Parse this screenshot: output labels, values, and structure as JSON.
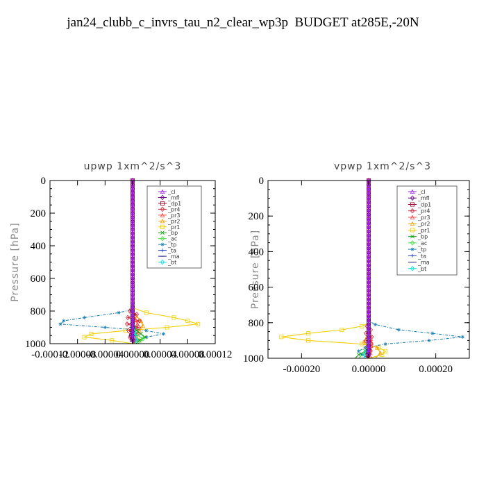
{
  "title": "jan24_clubb_c_invrs_tau_n2_clear_wp3p  BUDGET at285E,-20N",
  "legend_entries": [
    {
      "label": "_cl",
      "color": "#a020f0",
      "marker": "triangle"
    },
    {
      "label": "_mfl",
      "color": "#600080",
      "marker": "diamond"
    },
    {
      "label": "_dp1",
      "color": "#a0002a",
      "marker": "square"
    },
    {
      "label": "_pr4",
      "color": "#d0203a",
      "marker": "diamond"
    },
    {
      "label": "_pr3",
      "color": "#ff4040",
      "marker": "triangle"
    },
    {
      "label": "_pr2",
      "color": "#f0a000",
      "marker": "triangle"
    },
    {
      "label": "_pr1",
      "color": "#f0d000",
      "marker": "square"
    },
    {
      "label": "_bp",
      "color": "#10a010",
      "marker": "cross"
    },
    {
      "label": "_ac",
      "color": "#40e040",
      "marker": "diamond"
    },
    {
      "label": "_tp",
      "color": "#1a7fb0",
      "marker": "star"
    },
    {
      "label": "_ta",
      "color": "#2040c0",
      "marker": "plus"
    },
    {
      "label": "_ma",
      "color": "#202080",
      "marker": "dash"
    },
    {
      "label": "_bt",
      "color": "#00e0e0",
      "marker": "diamond"
    }
  ],
  "chart_data": [
    {
      "type": "line",
      "title": "upwp   1xm^2/s^3",
      "xlabel": "",
      "ylabel": "Pressure [hPa]",
      "xlim": [
        -0.00012,
        0.00012
      ],
      "ylim": [
        1000,
        0
      ],
      "x_ticks": [
        -0.00012,
        -8e-05,
        -4e-05,
        0.0,
        4e-05,
        8e-05,
        0.00012
      ],
      "x_tick_labels": [
        "-0.00012",
        "-0.00008",
        "-0.00004",
        "0.00000",
        "0.00004",
        "0.00008",
        "0.00012"
      ],
      "y_ticks": [
        0,
        200,
        400,
        600,
        800,
        1000
      ],
      "y_tick_labels": [
        "0",
        "200",
        "400",
        "600",
        "800",
        "1000"
      ],
      "legend_position": "top-right",
      "series": [
        {
          "name": "_pr1",
          "y": [
            0,
            780,
            810,
            840,
            860,
            880,
            900,
            920,
            940,
            960,
            980,
            1000
          ],
          "x": [
            0,
            0,
            2e-05,
            6e-05,
            8e-05,
            9.5e-05,
            5e-05,
            -1e-05,
            -6e-05,
            -7e-05,
            -3e-05,
            0
          ]
        },
        {
          "name": "_tp",
          "y": [
            0,
            790,
            810,
            840,
            860,
            880,
            900,
            920,
            940,
            960,
            980,
            1000
          ],
          "x": [
            0,
            0,
            -2e-05,
            -7e-05,
            -0.0001,
            -0.000105,
            -4e-05,
            2e-05,
            4.5e-05,
            2e-05,
            5e-06,
            0
          ]
        },
        {
          "name": "_pr2",
          "y": [
            0,
            800,
            830,
            860,
            890,
            920,
            950,
            980,
            1000
          ],
          "x": [
            0,
            0,
            5e-06,
            1.2e-05,
            1.5e-05,
            1e-05,
            5e-06,
            1e-05,
            0
          ]
        },
        {
          "name": "_pr4",
          "y": [
            0,
            780,
            800,
            820,
            840,
            860,
            880,
            900,
            920,
            940,
            960,
            980,
            1000
          ],
          "x": [
            0,
            0,
            -4e-06,
            6e-06,
            -7e-06,
            1e-05,
            -8e-06,
            9e-06,
            -6e-06,
            7e-06,
            -4e-06,
            3e-06,
            0
          ]
        },
        {
          "name": "_pr3",
          "y": [
            0,
            820,
            850,
            880,
            910,
            940,
            970,
            1000
          ],
          "x": [
            0,
            0,
            4e-06,
            7e-06,
            5e-06,
            3e-06,
            4e-06,
            0
          ]
        },
        {
          "name": "_bp",
          "y": [
            0,
            880,
            900,
            920,
            940,
            960,
            980,
            1000
          ],
          "x": [
            0,
            0,
            3e-06,
            6e-06,
            1.2e-05,
            1.8e-05,
            1e-05,
            5e-06
          ]
        },
        {
          "name": "_ac",
          "y": [
            0,
            900,
            940,
            970,
            1000
          ],
          "x": [
            0,
            0,
            4e-06,
            1.5e-05,
            8e-06
          ]
        },
        {
          "name": "_ta",
          "y": [
            0,
            850,
            900,
            950,
            1000
          ],
          "x": [
            0,
            0,
            2e-06,
            -3e-06,
            0
          ]
        },
        {
          "name": "_ma",
          "y": [
            0,
            850,
            900,
            950,
            1000
          ],
          "x": [
            0,
            0,
            -2e-06,
            2e-06,
            0
          ]
        },
        {
          "name": "_bt",
          "y": [
            0,
            880,
            930,
            980,
            1000
          ],
          "x": [
            0,
            0,
            3e-06,
            6e-06,
            3e-06
          ]
        },
        {
          "name": "_dp1",
          "y": [
            0,
            900,
            950,
            1000
          ],
          "x": [
            0,
            0,
            -2e-06,
            0
          ]
        },
        {
          "name": "_mfl",
          "y": [
            0,
            500,
            1000
          ],
          "x": [
            0,
            0,
            0
          ]
        },
        {
          "name": "_cl",
          "y": [
            0,
            500,
            1000
          ],
          "x": [
            0,
            0,
            0
          ]
        }
      ]
    },
    {
      "type": "line",
      "title": "vpwp   1xm^2/s^3",
      "xlabel": "",
      "ylabel": "Pressure [hPa]",
      "xlim": [
        -0.0003,
        0.0003
      ],
      "ylim": [
        1000,
        0
      ],
      "x_ticks": [
        -0.0002,
        0.0,
        0.0002
      ],
      "x_tick_labels": [
        "-0.00020",
        "0.00000",
        "0.00020"
      ],
      "y_ticks": [
        0,
        200,
        400,
        600,
        800,
        1000
      ],
      "y_tick_labels": [
        "0",
        "200",
        "400",
        "600",
        "800",
        "1000"
      ],
      "legend_position": "top-right",
      "series": [
        {
          "name": "_pr1",
          "y": [
            0,
            800,
            820,
            840,
            860,
            880,
            900,
            920,
            940,
            960,
            980,
            1000
          ],
          "x": [
            0,
            0,
            -2e-05,
            -8e-05,
            -0.00018,
            -0.00026,
            -0.00018,
            -2e-05,
            3e-05,
            5e-05,
            4e-05,
            0
          ]
        },
        {
          "name": "_tp",
          "y": [
            0,
            790,
            810,
            840,
            860,
            880,
            900,
            920,
            940,
            960,
            980,
            1000
          ],
          "x": [
            0,
            0,
            2e-05,
            9e-05,
            0.00019,
            0.00028,
            0.00018,
            5e-05,
            -1e-05,
            -3e-05,
            -2e-05,
            0
          ]
        },
        {
          "name": "_pr2",
          "y": [
            0,
            850,
            880,
            910,
            940,
            970,
            1000
          ],
          "x": [
            0,
            0,
            -5e-06,
            -1.5e-05,
            2.5e-05,
            3.5e-05,
            2e-05
          ]
        },
        {
          "name": "_pr4",
          "y": [
            0,
            800,
            820,
            840,
            860,
            880,
            900,
            920,
            940,
            960,
            980,
            1000
          ],
          "x": [
            0,
            0,
            -5e-06,
            6e-06,
            -8e-06,
            9e-06,
            -8e-06,
            8e-06,
            -6e-06,
            5e-06,
            -3e-06,
            0
          ]
        },
        {
          "name": "_pr3",
          "y": [
            0,
            830,
            870,
            910,
            950,
            990,
            1000
          ],
          "x": [
            0,
            0,
            4e-06,
            8e-06,
            6e-06,
            4e-06,
            0
          ]
        },
        {
          "name": "_bp",
          "y": [
            0,
            930,
            960,
            980,
            1000
          ],
          "x": [
            0,
            0,
            -1e-05,
            -3e-05,
            -4e-05
          ]
        },
        {
          "name": "_ac",
          "y": [
            0,
            940,
            970,
            1000
          ],
          "x": [
            0,
            0,
            -1.2e-05,
            -3e-05
          ]
        },
        {
          "name": "_ta",
          "y": [
            0,
            900,
            950,
            1000
          ],
          "x": [
            0,
            0,
            3e-06,
            0
          ]
        },
        {
          "name": "_ma",
          "y": [
            0,
            900,
            950,
            1000
          ],
          "x": [
            0,
            0,
            -3e-06,
            0
          ]
        },
        {
          "name": "_bt",
          "y": [
            0,
            920,
            960,
            1000
          ],
          "x": [
            0,
            0,
            -8e-06,
            -1.5e-05
          ]
        },
        {
          "name": "_dp1",
          "y": [
            0,
            940,
            1000
          ],
          "x": [
            0,
            0,
            -4e-06
          ]
        },
        {
          "name": "_mfl",
          "y": [
            0,
            500,
            1000
          ],
          "x": [
            0,
            0,
            0
          ]
        },
        {
          "name": "_cl",
          "y": [
            0,
            500,
            1000
          ],
          "x": [
            0,
            0,
            0
          ]
        }
      ]
    }
  ]
}
